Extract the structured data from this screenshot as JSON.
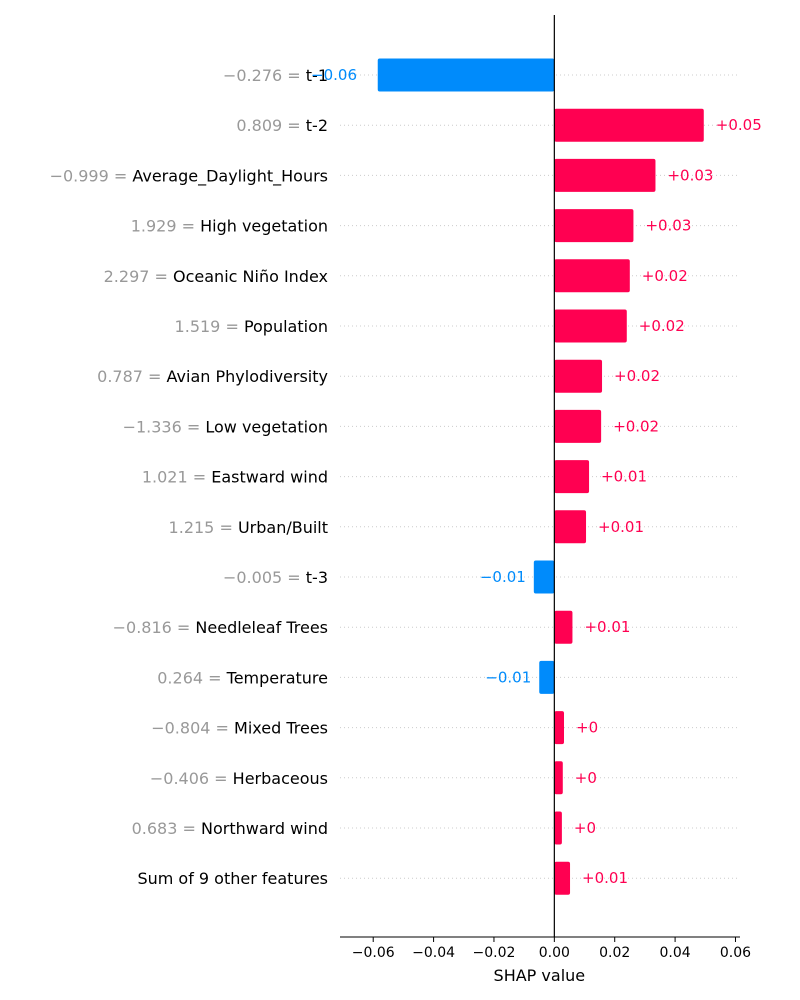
{
  "chart_data": {
    "type": "bar",
    "orientation": "horizontal",
    "xlabel": "SHAP value",
    "xlim": [
      -0.071,
      0.0615
    ],
    "xticks": [
      -0.06,
      -0.04,
      -0.02,
      0.0,
      0.02,
      0.04,
      0.06
    ],
    "xtick_labels": [
      "−0.06",
      "−0.04",
      "−0.02",
      "0.00",
      "0.02",
      "0.04",
      "0.06"
    ],
    "colors": {
      "positive": "#ff0051",
      "negative": "#008bfb"
    },
    "features": [
      {
        "value_text": "−0.276 = ",
        "name": "t-1",
        "shap": -0.0585,
        "label": "−0.06"
      },
      {
        "value_text": "0.809 = ",
        "name": "t-2",
        "shap": 0.0495,
        "label": "+0.05"
      },
      {
        "value_text": "−0.999 = ",
        "name": "Average_Daylight_Hours",
        "shap": 0.0335,
        "label": "+0.03"
      },
      {
        "value_text": "1.929 = ",
        "name": "High vegetation",
        "shap": 0.0262,
        "label": "+0.03"
      },
      {
        "value_text": "2.297 = ",
        "name": "Oceanic Niño Index",
        "shap": 0.025,
        "label": "+0.02"
      },
      {
        "value_text": "1.519 = ",
        "name": "Population",
        "shap": 0.024,
        "label": "+0.02"
      },
      {
        "value_text": "0.787 = ",
        "name": "Avian Phylodiversity",
        "shap": 0.0158,
        "label": "+0.02"
      },
      {
        "value_text": "−1.336 = ",
        "name": "Low vegetation",
        "shap": 0.0155,
        "label": "+0.02"
      },
      {
        "value_text": "1.021 = ",
        "name": "Eastward wind",
        "shap": 0.0115,
        "label": "+0.01"
      },
      {
        "value_text": "1.215 = ",
        "name": "Urban/Built",
        "shap": 0.0105,
        "label": "+0.01"
      },
      {
        "value_text": "−0.005 = ",
        "name": "t-3",
        "shap": -0.0068,
        "label": "−0.01"
      },
      {
        "value_text": "−0.816 = ",
        "name": "Needleleaf Trees",
        "shap": 0.006,
        "label": "+0.01"
      },
      {
        "value_text": "0.264 = ",
        "name": "Temperature",
        "shap": -0.005,
        "label": "−0.01"
      },
      {
        "value_text": "−0.804 = ",
        "name": "Mixed Trees",
        "shap": 0.0032,
        "label": "+0"
      },
      {
        "value_text": "−0.406 = ",
        "name": "Herbaceous",
        "shap": 0.0028,
        "label": "+0"
      },
      {
        "value_text": "0.683 = ",
        "name": "Northward wind",
        "shap": 0.0025,
        "label": "+0"
      },
      {
        "value_text": "",
        "name": "Sum of 9 other features",
        "shap": 0.0052,
        "label": "+0.01"
      }
    ]
  }
}
